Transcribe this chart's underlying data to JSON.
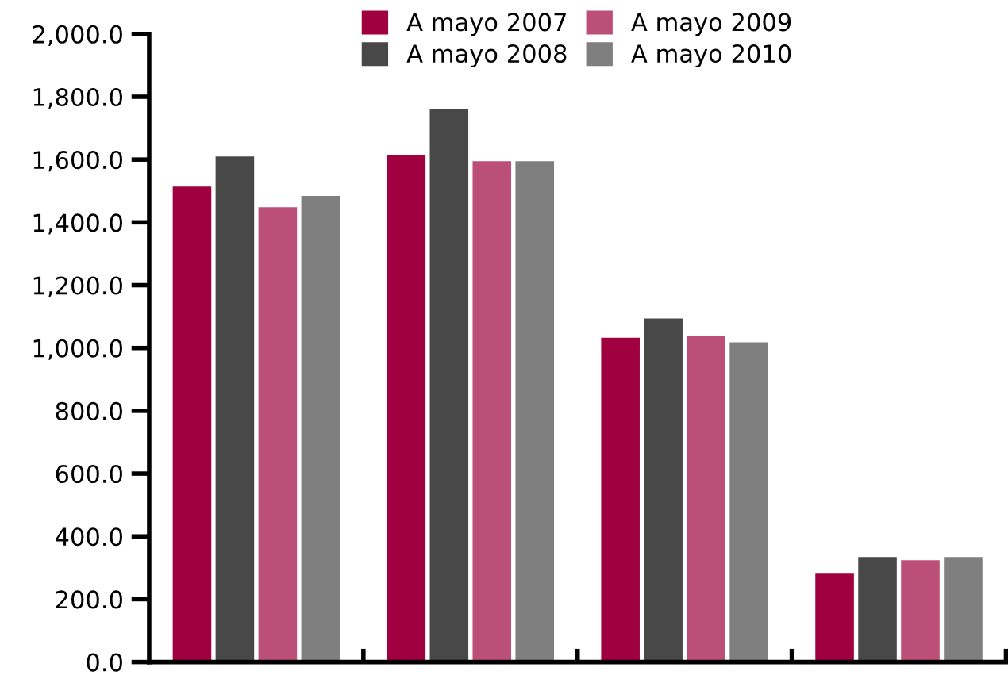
{
  "chart_data": {
    "type": "bar",
    "categories": [
      null,
      null,
      null,
      null
    ],
    "series": [
      {
        "name": "A mayo 2007",
        "color": "#a0003f",
        "values": [
          1514,
          1615,
          1033,
          284
        ]
      },
      {
        "name": "A mayo 2008",
        "color": "#484848",
        "values": [
          1610,
          1762,
          1094,
          334
        ]
      },
      {
        "name": "A mayo 2009",
        "color": "#bb4f77",
        "values": [
          1448,
          1595,
          1038,
          324
        ]
      },
      {
        "name": "A mayo 2010",
        "color": "#7f7f7f",
        "values": [
          1484,
          1595,
          1018,
          334
        ]
      }
    ],
    "ylim": [
      0,
      2000
    ],
    "yticks": [
      {
        "value": 0,
        "label": "0.0"
      },
      {
        "value": 200,
        "label": "200.0"
      },
      {
        "value": 400,
        "label": "400.0"
      },
      {
        "value": 600,
        "label": "600.0"
      },
      {
        "value": 800,
        "label": "800.0"
      },
      {
        "value": 1000,
        "label": "1,000.0"
      },
      {
        "value": 1200,
        "label": "1,200.0"
      },
      {
        "value": 1400,
        "label": "1,400.0"
      },
      {
        "value": 1600,
        "label": "1,600.0"
      },
      {
        "value": 1800,
        "label": "1,800.0"
      },
      {
        "value": 2000,
        "label": "2,000.0"
      }
    ],
    "tick_labels": "y",
    "grid": false,
    "legend": "top"
  }
}
